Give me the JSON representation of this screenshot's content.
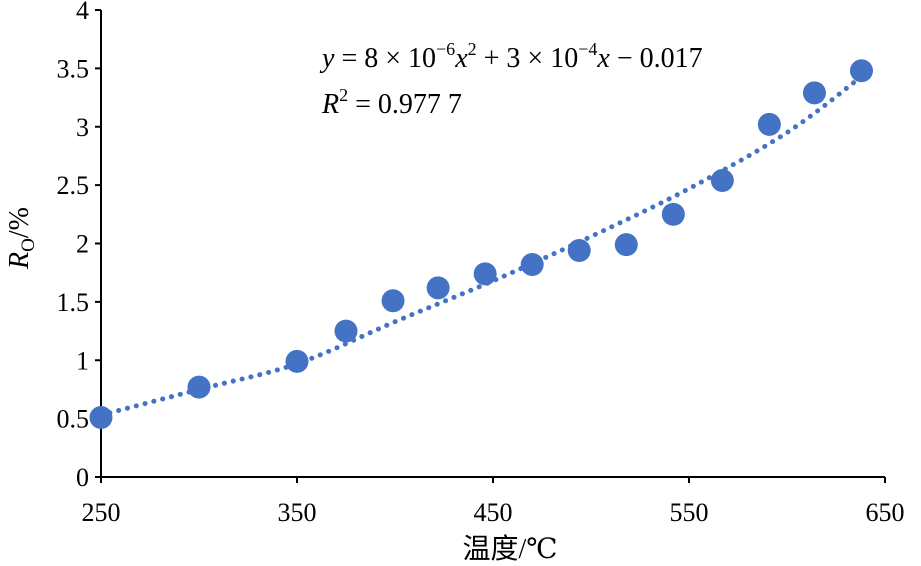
{
  "chart_data": {
    "type": "scatter",
    "xlabel": "温度/℃",
    "ylabel": {
      "main": "R",
      "sub": "O",
      "suffix": "/%"
    },
    "xlim": [
      250,
      650
    ],
    "ylim": [
      0,
      4
    ],
    "x_ticks": [
      "250",
      "350",
      "450",
      "550",
      "650"
    ],
    "y_ticks": [
      "0",
      "0.5",
      "1",
      "1.5",
      "2",
      "2.5",
      "3",
      "3.5",
      "4"
    ],
    "x_tick_values": [
      250,
      350,
      450,
      550,
      650
    ],
    "y_tick_values": [
      0,
      0.5,
      1,
      1.5,
      2,
      2.5,
      3,
      3.5,
      4
    ],
    "points": [
      {
        "x": 250,
        "y": 0.51
      },
      {
        "x": 300,
        "y": 0.77
      },
      {
        "x": 350,
        "y": 0.99
      },
      {
        "x": 375,
        "y": 1.25
      },
      {
        "x": 399,
        "y": 1.51
      },
      {
        "x": 422,
        "y": 1.62
      },
      {
        "x": 446,
        "y": 1.74
      },
      {
        "x": 470,
        "y": 1.82
      },
      {
        "x": 494,
        "y": 1.94
      },
      {
        "x": 518,
        "y": 1.99
      },
      {
        "x": 542,
        "y": 2.25
      },
      {
        "x": 567,
        "y": 2.54
      },
      {
        "x": 591,
        "y": 3.02
      },
      {
        "x": 614,
        "y": 3.29
      },
      {
        "x": 638,
        "y": 3.48
      }
    ],
    "trendline": {
      "type": "polynomial",
      "style": "dotted",
      "x_range": [
        250,
        638
      ],
      "curve_points": [
        [
          250,
          0.53
        ],
        [
          300,
          0.75
        ],
        [
          350,
          0.97
        ],
        [
          400,
          1.33
        ],
        [
          450,
          1.68
        ],
        [
          500,
          2.06
        ],
        [
          550,
          2.47
        ],
        [
          600,
          2.95
        ],
        [
          638,
          3.43
        ]
      ]
    },
    "annotation": {
      "equation": {
        "y": "y",
        "eq": " = 8 × 10",
        "exp1": "−6",
        "x1": "x",
        "sq": "2",
        "plus": " + 3 × 10",
        "exp2": "−4",
        "x2": "x",
        "tail": " − 0.017"
      },
      "r2": {
        "R": "R",
        "sq": "2",
        "value": " = 0.977 7"
      }
    },
    "colors": {
      "marker": "#4472C4",
      "trendline": "#4472C4",
      "axis": "#000000"
    },
    "grid": false,
    "legend": "none"
  }
}
